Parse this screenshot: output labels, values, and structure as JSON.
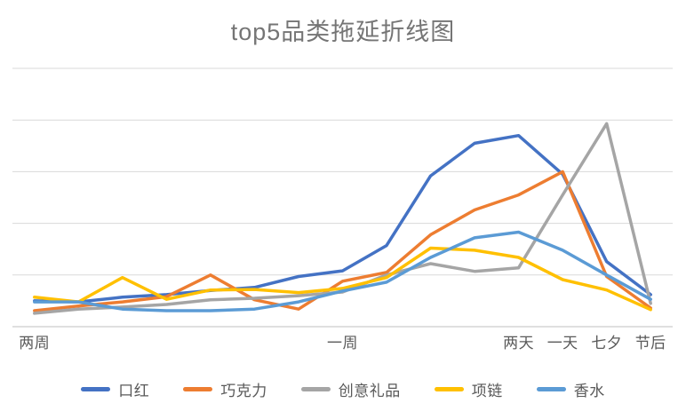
{
  "chart_data": {
    "type": "line",
    "title": "top5品类拖延折线图",
    "categories": [
      "两周",
      "",
      "",
      "",
      "",
      "",
      "",
      "一周",
      "",
      "",
      "",
      "两天",
      "一天",
      "七夕",
      "节后"
    ],
    "series": [
      {
        "key": "lipstick",
        "name": "口红",
        "color": "#4472C4",
        "values": [
          0.5,
          0.48,
          0.57,
          0.62,
          0.7,
          0.76,
          0.97,
          1.08,
          1.57,
          2.92,
          3.55,
          3.7,
          2.95,
          1.26,
          0.62
        ]
      },
      {
        "key": "chocolate",
        "name": "巧克力",
        "color": "#ED7D31",
        "values": [
          0.31,
          0.4,
          0.48,
          0.58,
          1.0,
          0.52,
          0.34,
          0.88,
          1.05,
          1.78,
          2.26,
          2.55,
          3.0,
          0.97,
          0.36
        ]
      },
      {
        "key": "creative-gifts",
        "name": "创意礼品",
        "color": "#A5A5A5",
        "values": [
          0.26,
          0.34,
          0.38,
          0.43,
          0.52,
          0.55,
          0.6,
          0.67,
          1.0,
          1.22,
          1.07,
          1.14,
          2.55,
          3.93,
          0.45
        ]
      },
      {
        "key": "necklace",
        "name": "项链",
        "color": "#FFC000",
        "values": [
          0.57,
          0.48,
          0.95,
          0.53,
          0.71,
          0.72,
          0.66,
          0.74,
          0.95,
          1.52,
          1.48,
          1.34,
          0.91,
          0.71,
          0.33
        ]
      },
      {
        "key": "perfume",
        "name": "香水",
        "color": "#5B9BD5",
        "values": [
          0.48,
          0.48,
          0.34,
          0.31,
          0.31,
          0.34,
          0.48,
          0.69,
          0.86,
          1.34,
          1.72,
          1.83,
          1.48,
          1.0,
          0.53
        ]
      }
    ],
    "xlabel": "",
    "ylabel": "",
    "ylim": [
      0,
      5
    ],
    "gridline_count": 6,
    "grid": "horizontal",
    "legend_position": "bottom",
    "colors": {
      "title_text": "#757575",
      "axis_text": "#595959",
      "gridline": "#D9D9D9",
      "axis_line": "#BFBFBF",
      "background": "#FFFFFF"
    }
  }
}
